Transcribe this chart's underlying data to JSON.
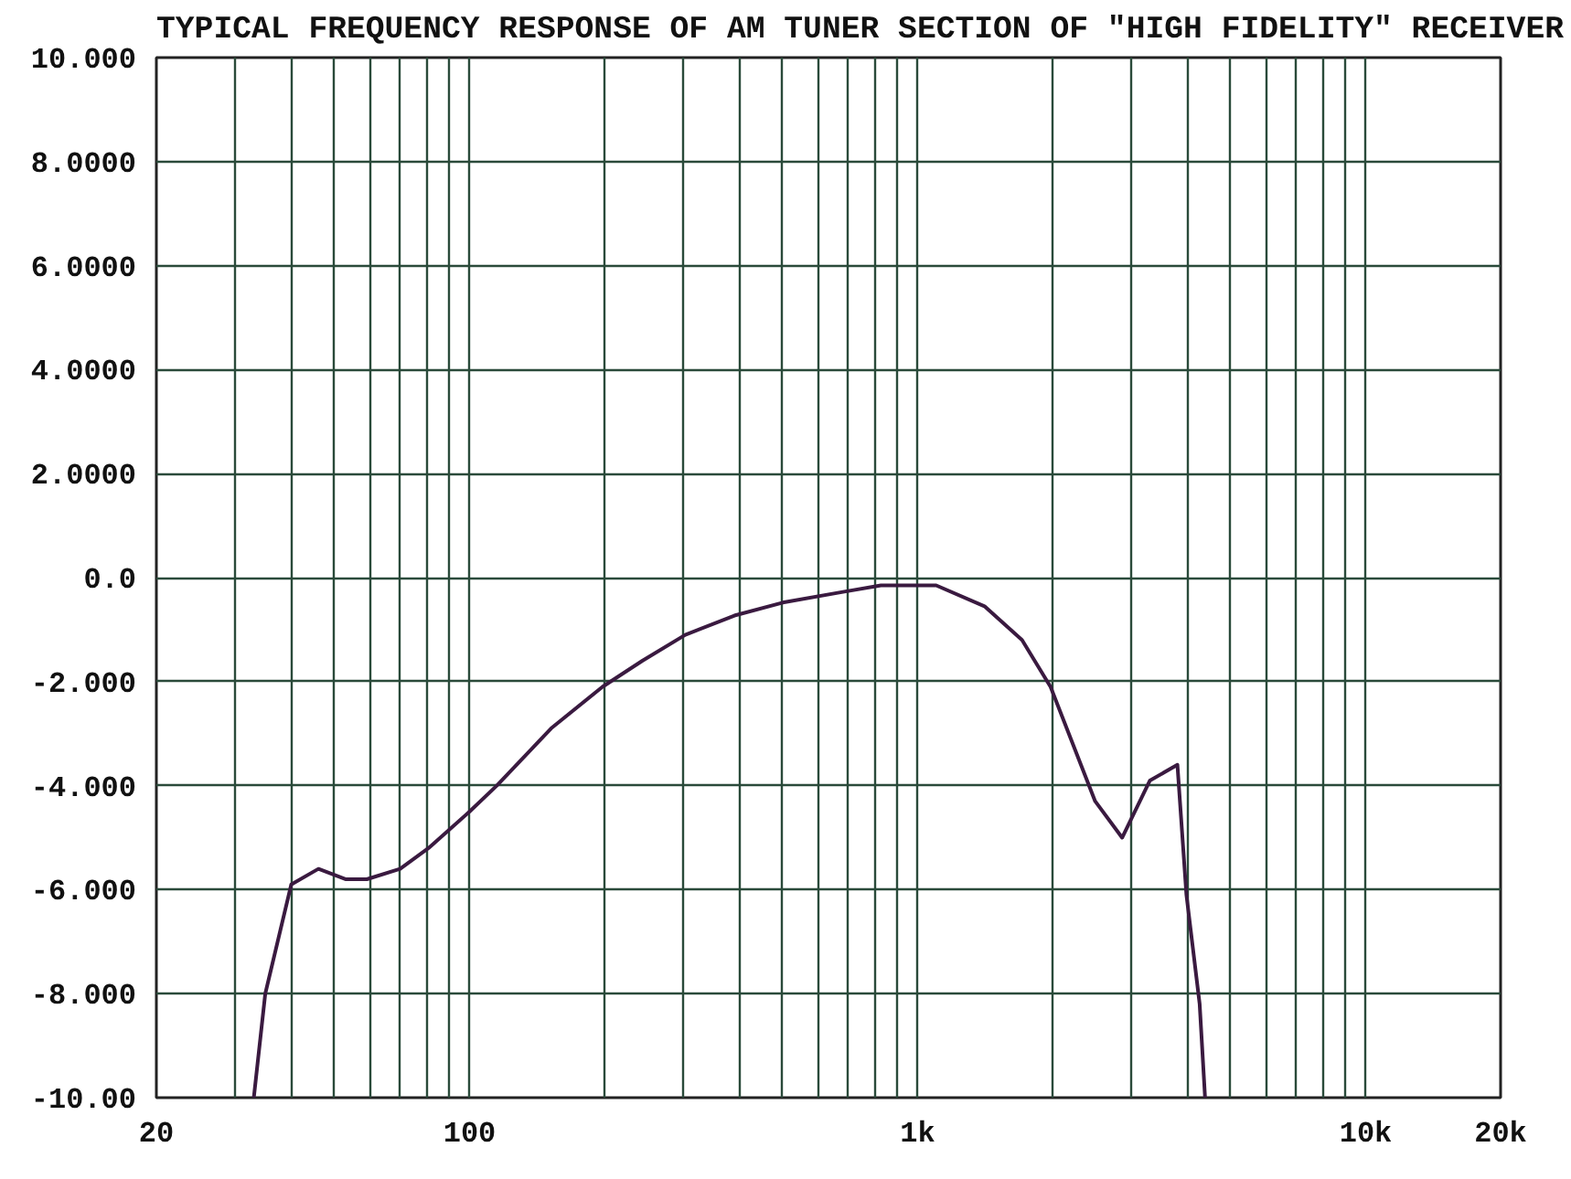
{
  "chart_data": {
    "type": "line",
    "title": "TYPICAL FREQUENCY RESPONSE OF AM TUNER SECTION OF \"HIGH FIDELITY\" RECEIVER",
    "log": "x",
    "grid": true,
    "line_style": "solid",
    "xlim": [
      20,
      20000
    ],
    "ylim": [
      -10,
      10
    ],
    "xticks": [
      20,
      {
        "value": 30,
        "label": null
      },
      {
        "value": 40,
        "label": null
      },
      {
        "value": 50,
        "label": null
      },
      {
        "value": 60,
        "label": null
      },
      {
        "value": 70,
        "label": null
      },
      {
        "value": 80,
        "label": null
      },
      {
        "value": 90,
        "label": null
      },
      100,
      {
        "value": 200,
        "label": null
      },
      {
        "value": 300,
        "label": null
      },
      {
        "value": 400,
        "label": null
      },
      {
        "value": 500,
        "label": null
      },
      {
        "value": 600,
        "label": null
      },
      {
        "value": 700,
        "label": null
      },
      {
        "value": 800,
        "label": null
      },
      {
        "value": 900,
        "label": null
      },
      {
        "value": 1000,
        "label": "1k"
      },
      {
        "value": 2000,
        "label": null
      },
      {
        "value": 3000,
        "label": null
      },
      {
        "value": 4000,
        "label": null
      },
      {
        "value": 5000,
        "label": null
      },
      {
        "value": 6000,
        "label": null
      },
      {
        "value": 7000,
        "label": null
      },
      {
        "value": 8000,
        "label": null
      },
      {
        "value": 9000,
        "label": null
      },
      {
        "value": 10000,
        "label": "10k"
      },
      {
        "value": 20000,
        "label": "20k"
      }
    ],
    "yticks": [
      {
        "value": 10,
        "label": "10.000"
      },
      {
        "value": 8,
        "label": "8.0000"
      },
      {
        "value": 6,
        "label": "6.0000"
      },
      {
        "value": 4,
        "label": "4.0000"
      },
      {
        "value": 2,
        "label": "2.0000"
      },
      {
        "value": 0,
        "label": "0.0"
      },
      {
        "value": -2,
        "label": "-2.000"
      },
      {
        "value": -4,
        "label": "-4.000"
      },
      {
        "value": -6,
        "label": "-6.000"
      },
      {
        "value": -8,
        "label": "-8.000"
      },
      {
        "value": -10,
        "label": "-10.00"
      }
    ],
    "series": [
      {
        "color": "#3a1a40",
        "x": [
          33,
          35,
          40,
          46,
          53,
          59,
          70,
          81,
          100,
          115,
          152,
          198,
          243,
          303,
          390,
          500,
          686,
          828,
          1100,
          1410,
          1710,
          1980,
          2490,
          2860,
          3300,
          3800,
          3980,
          4260,
          4380
        ],
        "values": [
          -10,
          -8.0,
          -5.9,
          -5.6,
          -5.8,
          -5.8,
          -5.6,
          -5.2,
          -4.5,
          -4.0,
          -2.9,
          -2.1,
          -1.6,
          -1.1,
          -0.73,
          -0.48,
          -0.27,
          -0.15,
          -0.15,
          -0.55,
          -1.2,
          -2.1,
          -4.3,
          -5.0,
          -3.9,
          -3.6,
          -6.1,
          -8.2,
          -10
        ]
      }
    ]
  }
}
